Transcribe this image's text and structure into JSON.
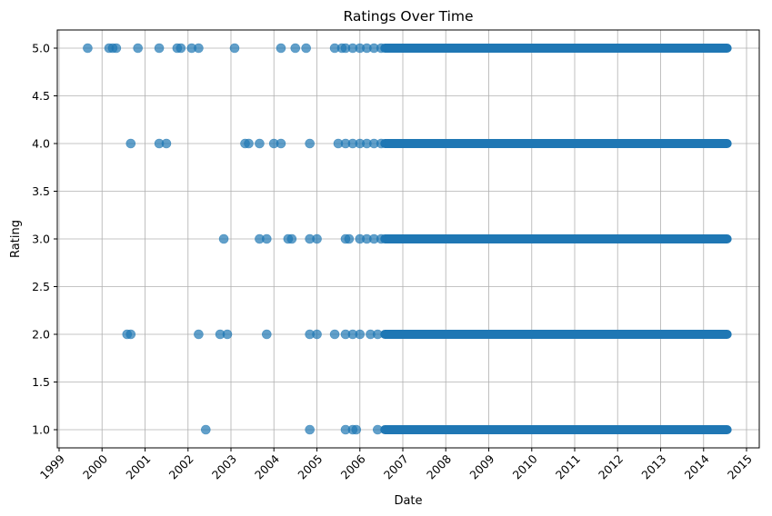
{
  "chart_data": {
    "type": "scatter",
    "title": "Ratings Over Time",
    "xlabel": "Date",
    "ylabel": "Rating",
    "grid": true,
    "legend": "none",
    "marker_color": "#1f77b4",
    "marker_alpha": 0.7,
    "xlim": [
      "1999-01-01",
      "2015-01-01"
    ],
    "ylim": [
      1.0,
      5.0
    ],
    "x_ticks": [
      "1999",
      "2000",
      "2001",
      "2002",
      "2003",
      "2004",
      "2005",
      "2006",
      "2007",
      "2008",
      "2009",
      "2010",
      "2011",
      "2012",
      "2013",
      "2014",
      "2015"
    ],
    "y_ticks": [
      "1.0",
      "1.5",
      "2.0",
      "2.5",
      "3.0",
      "3.5",
      "4.0",
      "4.5",
      "5.0"
    ],
    "dense_range": {
      "start": "2006-08-01",
      "end": "2014-07-20",
      "ratings": [
        1,
        2,
        3,
        4,
        5
      ]
    },
    "points": [
      {
        "x": "1999-09-01",
        "y": 5
      },
      {
        "x": "2000-03-01",
        "y": 5
      },
      {
        "x": "2000-04-01",
        "y": 5
      },
      {
        "x": "2000-05-01",
        "y": 5
      },
      {
        "x": "2000-11-01",
        "y": 5
      },
      {
        "x": "2001-05-01",
        "y": 5
      },
      {
        "x": "2001-10-01",
        "y": 5
      },
      {
        "x": "2001-11-01",
        "y": 5
      },
      {
        "x": "2002-02-01",
        "y": 5
      },
      {
        "x": "2002-04-01",
        "y": 5
      },
      {
        "x": "2003-02-01",
        "y": 5
      },
      {
        "x": "2004-03-01",
        "y": 5
      },
      {
        "x": "2004-07-01",
        "y": 5
      },
      {
        "x": "2004-10-01",
        "y": 5
      },
      {
        "x": "2005-06-01",
        "y": 5
      },
      {
        "x": "2005-08-01",
        "y": 5
      },
      {
        "x": "2005-09-01",
        "y": 5
      },
      {
        "x": "2005-11-01",
        "y": 5
      },
      {
        "x": "2006-01-01",
        "y": 5
      },
      {
        "x": "2006-03-01",
        "y": 5
      },
      {
        "x": "2006-05-01",
        "y": 5
      },
      {
        "x": "2006-07-01",
        "y": 5
      },
      {
        "x": "2000-09-01",
        "y": 4
      },
      {
        "x": "2001-05-01",
        "y": 4
      },
      {
        "x": "2001-07-01",
        "y": 4
      },
      {
        "x": "2003-05-01",
        "y": 4
      },
      {
        "x": "2003-06-01",
        "y": 4
      },
      {
        "x": "2003-09-01",
        "y": 4
      },
      {
        "x": "2004-01-01",
        "y": 4
      },
      {
        "x": "2004-03-01",
        "y": 4
      },
      {
        "x": "2004-11-01",
        "y": 4
      },
      {
        "x": "2005-07-01",
        "y": 4
      },
      {
        "x": "2005-09-01",
        "y": 4
      },
      {
        "x": "2005-11-01",
        "y": 4
      },
      {
        "x": "2006-01-01",
        "y": 4
      },
      {
        "x": "2006-03-01",
        "y": 4
      },
      {
        "x": "2006-05-01",
        "y": 4
      },
      {
        "x": "2006-07-01",
        "y": 4
      },
      {
        "x": "2002-11-01",
        "y": 3
      },
      {
        "x": "2003-09-01",
        "y": 3
      },
      {
        "x": "2003-11-01",
        "y": 3
      },
      {
        "x": "2004-05-01",
        "y": 3
      },
      {
        "x": "2004-06-01",
        "y": 3
      },
      {
        "x": "2004-11-01",
        "y": 3
      },
      {
        "x": "2005-01-01",
        "y": 3
      },
      {
        "x": "2005-09-01",
        "y": 3
      },
      {
        "x": "2005-10-01",
        "y": 3
      },
      {
        "x": "2006-01-01",
        "y": 3
      },
      {
        "x": "2006-03-01",
        "y": 3
      },
      {
        "x": "2006-05-01",
        "y": 3
      },
      {
        "x": "2006-07-01",
        "y": 3
      },
      {
        "x": "2000-08-01",
        "y": 2
      },
      {
        "x": "2000-09-01",
        "y": 2
      },
      {
        "x": "2002-04-01",
        "y": 2
      },
      {
        "x": "2002-10-01",
        "y": 2
      },
      {
        "x": "2002-12-01",
        "y": 2
      },
      {
        "x": "2003-11-01",
        "y": 2
      },
      {
        "x": "2004-11-01",
        "y": 2
      },
      {
        "x": "2005-01-01",
        "y": 2
      },
      {
        "x": "2005-06-01",
        "y": 2
      },
      {
        "x": "2005-09-01",
        "y": 2
      },
      {
        "x": "2005-11-01",
        "y": 2
      },
      {
        "x": "2006-01-01",
        "y": 2
      },
      {
        "x": "2006-04-01",
        "y": 2
      },
      {
        "x": "2006-06-01",
        "y": 2
      },
      {
        "x": "2002-06-01",
        "y": 1
      },
      {
        "x": "2004-11-01",
        "y": 1
      },
      {
        "x": "2005-09-01",
        "y": 1
      },
      {
        "x": "2005-11-01",
        "y": 1
      },
      {
        "x": "2005-12-01",
        "y": 1
      },
      {
        "x": "2006-06-01",
        "y": 1
      }
    ]
  }
}
